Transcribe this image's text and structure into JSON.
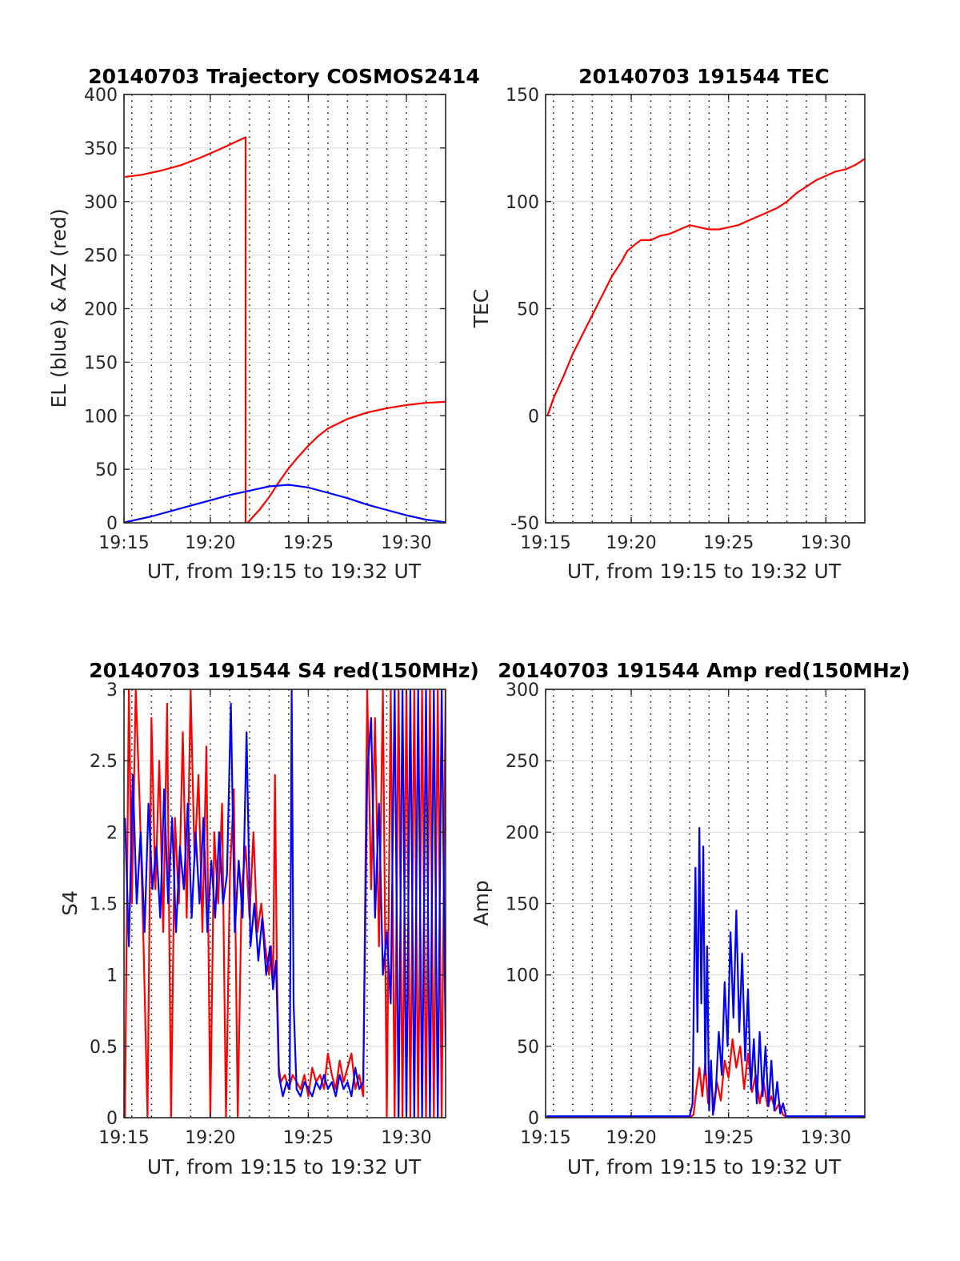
{
  "chart_data": [
    {
      "id": "p1",
      "type": "line",
      "title": "20140703 Trajectory COSMOS2414",
      "xlabel": "UT, from 19:15 to 19:32 UT",
      "ylabel": "EL (blue) & AZ (red)",
      "xlim": [
        15.6,
        32
      ],
      "ylim": [
        0,
        400
      ],
      "xticks": [
        15,
        20,
        25,
        30
      ],
      "xtick_labels": [
        "19:15",
        "19:20",
        "19:25",
        "19:30"
      ],
      "yticks": [
        0,
        50,
        100,
        150,
        200,
        250,
        300,
        350,
        400
      ],
      "ytick_labels": [
        "0",
        "50",
        "100",
        "150",
        "200",
        "250",
        "300",
        "350",
        "400"
      ],
      "vgrid": [
        16,
        17,
        18,
        19,
        20,
        21,
        22,
        23,
        24,
        25,
        26,
        27,
        28,
        29,
        30,
        31
      ],
      "series": [
        {
          "color": "#ff0000",
          "x": [
            15.65,
            16.5,
            17.5,
            18.5,
            19.5,
            20.5,
            21.2,
            21.8,
            21.8,
            21.9,
            22.5,
            23.0,
            23.5,
            24.0,
            24.5,
            25.0,
            25.5,
            26.0,
            27.0,
            28.0,
            29.0,
            30.0,
            31.0,
            32.0
          ],
          "y": [
            323,
            325,
            329,
            334,
            341,
            349,
            355,
            360,
            0,
            0,
            12,
            24,
            38,
            51,
            62,
            72,
            81,
            88,
            97,
            103,
            107,
            110,
            112,
            113
          ]
        },
        {
          "color": "#0000ff",
          "x": [
            15.65,
            17,
            18,
            19,
            20,
            21,
            22,
            23,
            24,
            25,
            26,
            27,
            28,
            29,
            30,
            31,
            32
          ],
          "y": [
            0.5,
            6,
            11,
            16,
            21,
            26,
            30,
            34,
            35.5,
            33,
            28,
            23,
            17,
            12,
            7,
            3,
            0.5
          ]
        }
      ]
    },
    {
      "id": "p2",
      "type": "line",
      "title": "20140703 191544 TEC",
      "xlabel": "UT, from 19:15 to 19:32 UT",
      "ylabel": "TEC",
      "xlim": [
        15.6,
        32
      ],
      "ylim": [
        -50,
        150
      ],
      "xticks": [
        15,
        20,
        25,
        30
      ],
      "xtick_labels": [
        "19:15",
        "19:20",
        "19:25",
        "19:30"
      ],
      "yticks": [
        -50,
        0,
        50,
        100,
        150
      ],
      "ytick_labels": [
        "-50",
        "0",
        "50",
        "100",
        "150"
      ],
      "vgrid": [
        16,
        17,
        18,
        19,
        20,
        21,
        22,
        23,
        24,
        25,
        26,
        27,
        28,
        29,
        30,
        31
      ],
      "series": [
        {
          "color": "#ff0000",
          "x": [
            15.7,
            16,
            16.5,
            17,
            17.5,
            18,
            18.5,
            19,
            19.5,
            19.8,
            20.2,
            20.5,
            21,
            21.5,
            22,
            22.5,
            23,
            23.5,
            24,
            24.5,
            25,
            25.5,
            26,
            26.5,
            27,
            27.5,
            28,
            28.5,
            29,
            29.5,
            30,
            30.5,
            31,
            31.5,
            32
          ],
          "y": [
            0,
            8,
            18,
            29,
            38,
            47,
            56,
            65,
            72,
            77,
            80,
            82,
            82,
            84,
            85,
            87,
            89,
            88,
            87,
            87,
            88,
            89,
            91,
            93,
            95,
            97,
            100,
            104,
            107,
            110,
            112,
            114,
            115,
            117,
            120
          ]
        }
      ]
    },
    {
      "id": "p3",
      "type": "line",
      "title": "20140703 191544 S4 red(150MHz)",
      "xlabel": "UT, from 19:15 to 19:32 UT",
      "ylabel": "S4",
      "xlim": [
        15.6,
        32
      ],
      "ylim": [
        0,
        3
      ],
      "xticks": [
        15,
        20,
        25,
        30
      ],
      "xtick_labels": [
        "19:15",
        "19:20",
        "19:25",
        "19:30"
      ],
      "yticks": [
        0,
        0.5,
        1,
        1.5,
        2,
        2.5,
        3
      ],
      "ytick_labels": [
        "0",
        "0.5",
        "1",
        "1.5",
        "2",
        "2.5",
        "3"
      ],
      "vgrid": [
        16,
        17,
        18,
        19,
        20,
        21,
        22,
        23,
        24,
        25,
        26,
        27,
        28,
        29,
        30,
        31
      ],
      "series": [
        {
          "color": "#ff0000",
          "x": [
            15.65,
            15.85,
            16.0,
            16.2,
            16.4,
            16.6,
            16.8,
            17.0,
            17.2,
            17.4,
            17.6,
            17.8,
            18.0,
            18.2,
            18.4,
            18.6,
            18.8,
            19.0,
            19.2,
            19.4,
            19.6,
            19.8,
            20.0,
            20.2,
            20.4,
            20.6,
            20.8,
            21.0,
            21.2,
            21.4,
            21.6,
            21.8,
            22.0,
            22.2,
            22.4,
            22.6,
            22.8,
            23.0,
            23.1,
            23.2,
            23.3,
            23.4,
            23.5,
            23.6,
            23.8,
            24.0,
            24.2,
            24.4,
            24.6,
            24.8,
            25.0,
            25.2,
            25.4,
            25.6,
            25.8,
            26.0,
            26.2,
            26.4,
            26.6,
            26.8,
            27.0,
            27.2,
            27.4,
            27.6,
            27.8,
            28.0,
            28.2,
            28.4,
            28.6,
            28.8,
            29.0,
            29.2,
            29.4,
            29.6,
            29.8,
            30.0,
            30.2,
            30.4,
            30.6,
            30.8,
            31.0,
            31.2,
            31.4,
            31.6,
            31.8,
            32.0
          ],
          "y": [
            0,
            3,
            1.5,
            3,
            2.2,
            1.2,
            0,
            2.8,
            1.6,
            2.5,
            1.3,
            2.9,
            0,
            2.1,
            1.5,
            2.7,
            1.4,
            3,
            1.8,
            2.4,
            1.3,
            2.6,
            0,
            2.0,
            1.5,
            2.2,
            0,
            1.7,
            2.3,
            0,
            1.6,
            1.9,
            1.4,
            2.0,
            1.3,
            1.5,
            1.2,
            1.0,
            1.2,
            0.9,
            2.4,
            1.0,
            0.35,
            0.25,
            0.3,
            0.2,
            0.3,
            0.25,
            0.2,
            0.3,
            0.15,
            0.35,
            0.25,
            0.3,
            0.2,
            0.45,
            0.3,
            0.2,
            0.4,
            0.25,
            0.35,
            0.45,
            0.2,
            0.3,
            0.15,
            3,
            1.6,
            2.8,
            1.2,
            3,
            0,
            3,
            0,
            3,
            0,
            3,
            0,
            3,
            0,
            3,
            0,
            3,
            0,
            3,
            0,
            3
          ]
        },
        {
          "color": "#0000ff",
          "x": [
            15.65,
            15.85,
            16.05,
            16.25,
            16.45,
            16.65,
            16.85,
            17.05,
            17.25,
            17.45,
            17.65,
            17.85,
            18.05,
            18.25,
            18.45,
            18.65,
            18.85,
            19.05,
            19.25,
            19.45,
            19.65,
            19.85,
            20.05,
            20.25,
            20.45,
            20.65,
            20.85,
            21.05,
            21.25,
            21.45,
            21.65,
            21.85,
            22.05,
            22.25,
            22.45,
            22.65,
            22.85,
            23.05,
            23.2,
            23.35,
            23.5,
            23.7,
            23.9,
            24.05,
            24.15,
            24.25,
            24.4,
            24.6,
            24.8,
            25.0,
            25.2,
            25.4,
            25.6,
            25.8,
            26.0,
            26.2,
            26.4,
            26.6,
            26.8,
            27.0,
            27.2,
            27.4,
            27.6,
            27.8,
            28.0,
            28.2,
            28.4,
            28.6,
            28.8,
            29.0,
            29.2,
            29.4,
            29.6,
            29.8,
            30.0,
            30.2,
            30.4,
            30.6,
            30.8,
            31.0,
            31.2,
            31.4,
            31.6,
            31.8,
            32.0
          ],
          "y": [
            2.1,
            1.2,
            2.4,
            1.5,
            2.0,
            1.3,
            2.2,
            1.6,
            1.9,
            1.4,
            2.3,
            1.5,
            2.1,
            1.3,
            1.9,
            1.6,
            2.2,
            1.4,
            2.0,
            1.5,
            2.1,
            1.3,
            1.8,
            1.4,
            2.0,
            1.5,
            1.7,
            2.9,
            1.3,
            1.8,
            1.4,
            2.7,
            1.2,
            1.5,
            1.1,
            1.4,
            1.0,
            1.2,
            0.9,
            1.1,
            0.3,
            0.15,
            0.25,
            0.2,
            3,
            0.8,
            0.2,
            0.15,
            0.25,
            0.2,
            0.15,
            0.25,
            0.2,
            0.3,
            0.2,
            0.25,
            0.15,
            0.3,
            0.2,
            0.25,
            0.15,
            0.35,
            0.2,
            0.25,
            2.4,
            2.8,
            1.4,
            2.2,
            1.0,
            1.3,
            0.8,
            3,
            0,
            3,
            0,
            3,
            0,
            3,
            0,
            3,
            0,
            3,
            0,
            3,
            0.5
          ]
        }
      ]
    },
    {
      "id": "p4",
      "type": "line",
      "title": "20140703 191544 Amp red(150MHz)",
      "xlabel": "UT, from 19:15 to 19:32 UT",
      "ylabel": "Amp",
      "xlim": [
        15.6,
        32
      ],
      "ylim": [
        0,
        300
      ],
      "xticks": [
        15,
        20,
        25,
        30
      ],
      "xtick_labels": [
        "19:15",
        "19:20",
        "19:25",
        "19:30"
      ],
      "yticks": [
        0,
        50,
        100,
        150,
        200,
        250,
        300
      ],
      "ytick_labels": [
        "0",
        "50",
        "100",
        "150",
        "200",
        "250",
        "300"
      ],
      "vgrid": [
        16,
        17,
        18,
        19,
        20,
        21,
        22,
        23,
        24,
        25,
        26,
        27,
        28,
        29,
        30,
        31
      ],
      "series": [
        {
          "color": "#ff0000",
          "x": [
            15.65,
            23.0,
            23.2,
            23.35,
            23.5,
            23.65,
            23.8,
            23.95,
            24.1,
            24.25,
            24.4,
            24.6,
            24.8,
            25.0,
            25.2,
            25.4,
            25.6,
            25.8,
            26.0,
            26.2,
            26.4,
            26.6,
            26.8,
            27.0,
            27.2,
            27.4,
            27.6,
            27.8,
            28.0,
            28.2,
            32.0
          ],
          "y": [
            0,
            0,
            2,
            20,
            35,
            15,
            38,
            10,
            30,
            5,
            25,
            12,
            40,
            28,
            55,
            35,
            50,
            20,
            45,
            18,
            30,
            10,
            25,
            8,
            15,
            5,
            10,
            2,
            0,
            0,
            0
          ]
        },
        {
          "color": "#0000ff",
          "x": [
            15.65,
            23.0,
            23.15,
            23.3,
            23.4,
            23.5,
            23.6,
            23.7,
            23.8,
            23.9,
            24.0,
            24.1,
            24.2,
            24.35,
            24.5,
            24.65,
            24.8,
            24.95,
            25.1,
            25.25,
            25.4,
            25.55,
            25.7,
            25.85,
            26.0,
            26.15,
            26.3,
            26.45,
            26.6,
            26.75,
            26.9,
            27.05,
            27.2,
            27.35,
            27.5,
            27.65,
            27.8,
            27.95,
            28.2,
            32.0
          ],
          "y": [
            1,
            1,
            10,
            175,
            60,
            203,
            80,
            190,
            30,
            120,
            5,
            40,
            2,
            20,
            60,
            30,
            95,
            50,
            130,
            70,
            145,
            60,
            115,
            40,
            90,
            20,
            55,
            10,
            60,
            15,
            50,
            8,
            40,
            5,
            25,
            3,
            10,
            1,
            1,
            1
          ]
        }
      ]
    }
  ]
}
